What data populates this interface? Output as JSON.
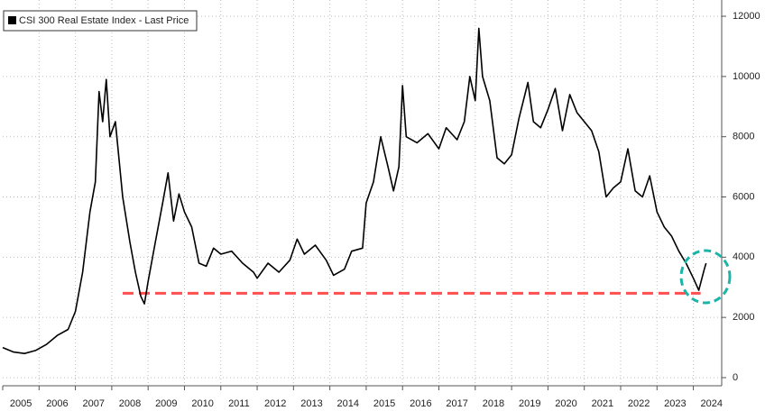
{
  "chart_data": {
    "type": "line",
    "x": [
      2005.0,
      2005.3,
      2005.6,
      2005.9,
      2006.2,
      2006.5,
      2006.8,
      2007.0,
      2007.2,
      2007.4,
      2007.55,
      2007.65,
      2007.75,
      2007.85,
      2007.95,
      2008.1,
      2008.3,
      2008.5,
      2008.65,
      2008.8,
      2008.9,
      2009.0,
      2009.2,
      2009.4,
      2009.55,
      2009.7,
      2009.85,
      2010.0,
      2010.2,
      2010.4,
      2010.6,
      2010.8,
      2011.0,
      2011.3,
      2011.6,
      2011.9,
      2012.0,
      2012.3,
      2012.6,
      2012.9,
      2013.1,
      2013.3,
      2013.6,
      2013.9,
      2014.1,
      2014.4,
      2014.6,
      2014.9,
      2015.0,
      2015.2,
      2015.4,
      2015.6,
      2015.75,
      2015.9,
      2016.0,
      2016.1,
      2016.4,
      2016.7,
      2017.0,
      2017.2,
      2017.5,
      2017.7,
      2017.85,
      2018.0,
      2018.1,
      2018.2,
      2018.4,
      2018.6,
      2018.8,
      2019.0,
      2019.2,
      2019.45,
      2019.6,
      2019.8,
      2020.0,
      2020.2,
      2020.4,
      2020.6,
      2020.8,
      2021.0,
      2021.2,
      2021.4,
      2021.6,
      2021.8,
      2022.0,
      2022.2,
      2022.4,
      2022.6,
      2022.8,
      2023.0,
      2023.2,
      2023.4,
      2023.6,
      2023.8,
      2024.0,
      2024.15,
      2024.3,
      2024.35
    ],
    "series": [
      {
        "name": "CSI 300 Real Estate Index - Last Price",
        "color": "#000000",
        "values": [
          1000,
          850,
          800,
          900,
          1100,
          1400,
          1600,
          2200,
          3500,
          5500,
          6500,
          9500,
          8500,
          9900,
          8000,
          8500,
          6000,
          4500,
          3500,
          2700,
          2450,
          3200,
          4500,
          5800,
          6800,
          5200,
          6100,
          5500,
          5000,
          3800,
          3700,
          4300,
          4100,
          4200,
          3800,
          3500,
          3300,
          3800,
          3500,
          3900,
          4600,
          4100,
          4400,
          3900,
          3400,
          3600,
          4200,
          4300,
          5800,
          6500,
          8000,
          7000,
          6200,
          7000,
          9700,
          8000,
          7800,
          8100,
          7600,
          8300,
          7900,
          8500,
          10000,
          9200,
          11600,
          10000,
          9200,
          7300,
          7100,
          7400,
          8600,
          9800,
          8500,
          8300,
          8900,
          9600,
          8200,
          9400,
          8800,
          8500,
          8200,
          7500,
          6000,
          6300,
          6500,
          7600,
          6200,
          6000,
          6700,
          5500,
          5000,
          4700,
          4200,
          3800,
          3300,
          2900,
          3600,
          3800
        ]
      }
    ],
    "xlim": [
      2005,
      2024.78
    ],
    "xticks": [
      {
        "value": 2005,
        "label": "2005"
      },
      {
        "value": 2006,
        "label": "2006"
      },
      {
        "value": 2007,
        "label": "2007"
      },
      {
        "value": 2008,
        "label": "2008"
      },
      {
        "value": 2009,
        "label": "2009"
      },
      {
        "value": 2010,
        "label": "2010"
      },
      {
        "value": 2011,
        "label": "2011"
      },
      {
        "value": 2012,
        "label": "2012"
      },
      {
        "value": 2013,
        "label": "2013"
      },
      {
        "value": 2014,
        "label": "2014"
      },
      {
        "value": 2015,
        "label": "2015"
      },
      {
        "value": 2016,
        "label": "2016"
      },
      {
        "value": 2017,
        "label": "2017"
      },
      {
        "value": 2018,
        "label": "2018"
      },
      {
        "value": 2019,
        "label": "2019"
      },
      {
        "value": 2020,
        "label": "2020"
      },
      {
        "value": 2021,
        "label": "2021"
      },
      {
        "value": 2022,
        "label": "2022"
      },
      {
        "value": 2023,
        "label": "2023"
      },
      {
        "value": 2024,
        "label": "2024"
      }
    ],
    "ylim": [
      -270,
      12540
    ],
    "yticks": [
      0,
      2000,
      4000,
      6000,
      8000,
      10000,
      12000
    ],
    "grid": true,
    "legend": "top-left",
    "reference_line": {
      "value": 2800,
      "color": "#ff4f4f",
      "x": [
        2008.3,
        2024.2
      ]
    }
  }
}
